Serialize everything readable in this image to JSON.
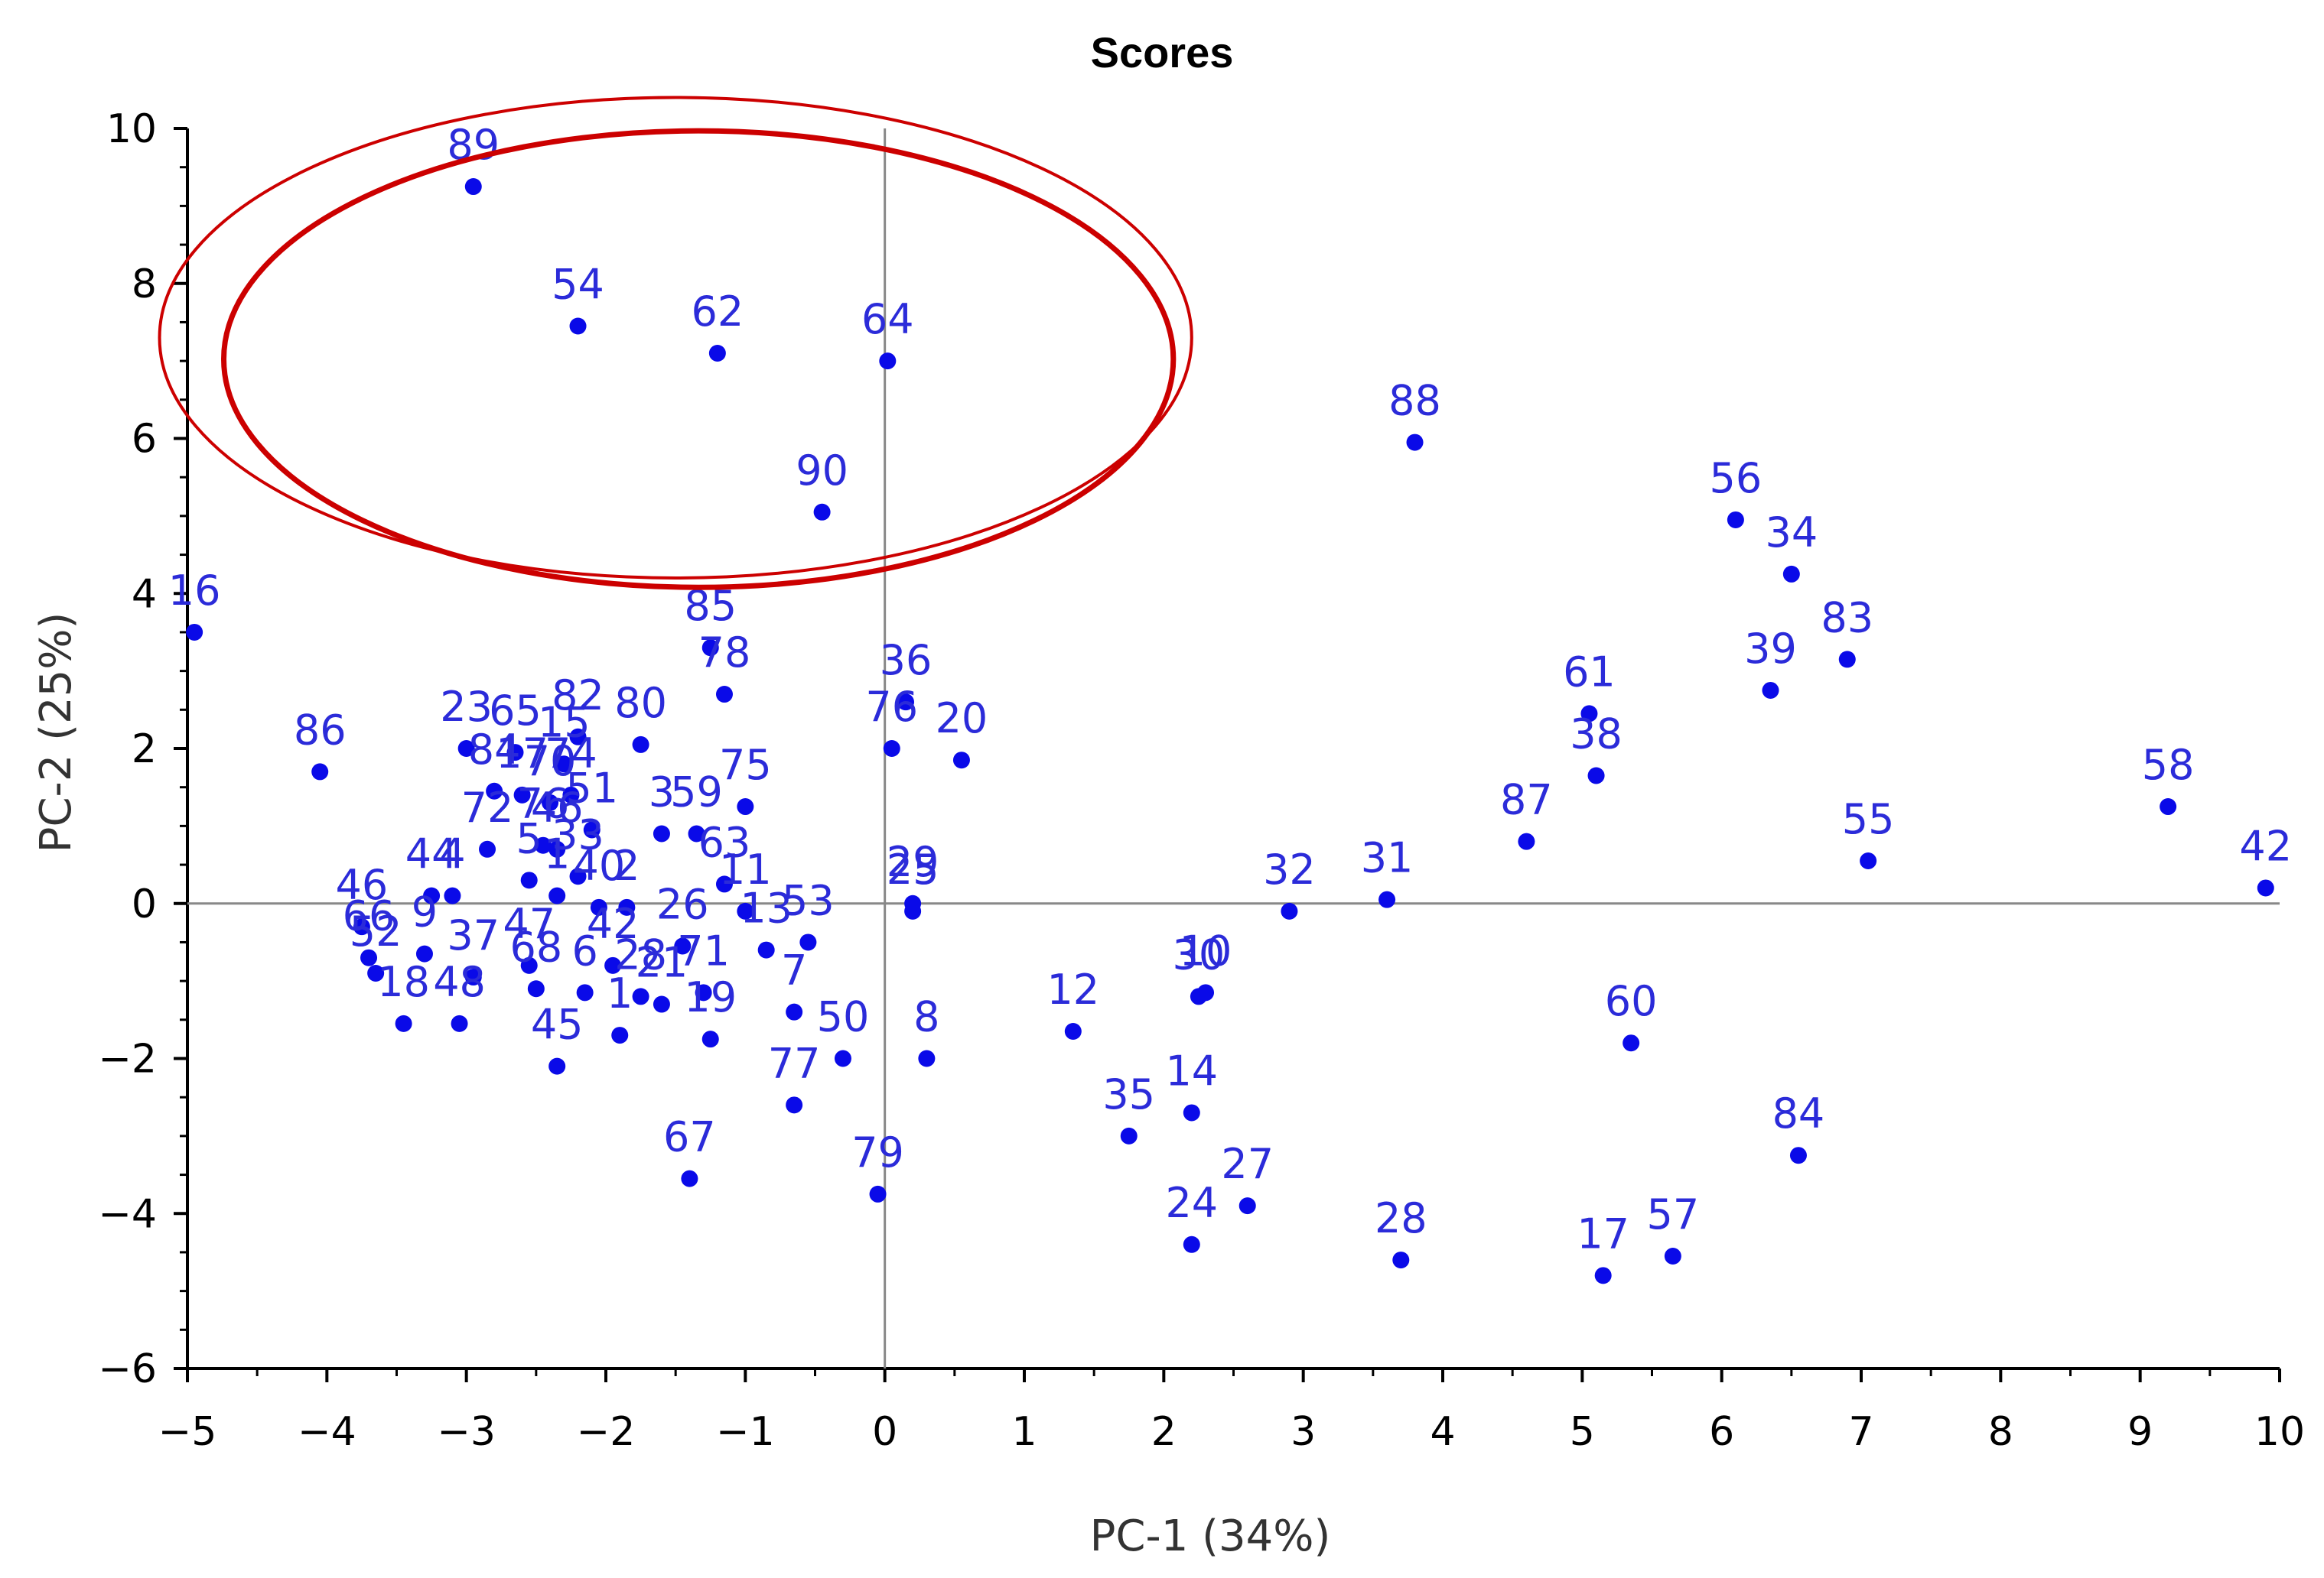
{
  "chart_data": {
    "type": "scatter",
    "title": "Scores",
    "xlabel": "PC-1 (34%)",
    "ylabel": "PC-2 (25%)",
    "xlim": [
      -5,
      10
    ],
    "ylim": [
      -6,
      10
    ],
    "xticks": [
      "−5",
      "−4",
      "−3",
      "−2",
      "−1",
      "0",
      "1",
      "2",
      "3",
      "4",
      "5",
      "6",
      "7",
      "8",
      "9",
      "10"
    ],
    "yticks": [
      "−6",
      "−4",
      "−2",
      "0",
      "2",
      "4",
      "6",
      "8",
      "10"
    ],
    "grid": false,
    "zero_lines": true,
    "point_color": "#0a0ae8",
    "label_color": "#2b2bd9",
    "highlight_color": "#cc0000",
    "highlight_ellipse": {
      "center": [
        -1.5,
        7.3
      ],
      "radius": [
        3.7,
        3.1
      ]
    },
    "points": [
      {
        "label": "89",
        "x": -2.95,
        "y": 9.25
      },
      {
        "label": "54",
        "x": -2.2,
        "y": 7.45
      },
      {
        "label": "62",
        "x": -1.2,
        "y": 7.1
      },
      {
        "label": "64",
        "x": 0.02,
        "y": 7.0
      },
      {
        "label": "90",
        "x": -0.45,
        "y": 5.05
      },
      {
        "label": "88",
        "x": 3.8,
        "y": 5.95
      },
      {
        "label": "56",
        "x": 6.1,
        "y": 4.95
      },
      {
        "label": "34",
        "x": 6.5,
        "y": 4.25
      },
      {
        "label": "83",
        "x": 6.9,
        "y": 3.15
      },
      {
        "label": "39",
        "x": 6.35,
        "y": 2.75
      },
      {
        "label": "61",
        "x": 5.05,
        "y": 2.45
      },
      {
        "label": "38",
        "x": 5.1,
        "y": 1.65
      },
      {
        "label": "87",
        "x": 4.6,
        "y": 0.8
      },
      {
        "label": "58",
        "x": 9.2,
        "y": 1.25
      },
      {
        "label": "42",
        "x": 9.9,
        "y": 0.2
      },
      {
        "label": "55",
        "x": 7.05,
        "y": 0.55
      },
      {
        "label": "32",
        "x": 2.9,
        "y": -0.1
      },
      {
        "label": "31",
        "x": 3.6,
        "y": 0.05
      },
      {
        "label": "16",
        "x": -4.95,
        "y": 3.5
      },
      {
        "label": "86",
        "x": -4.05,
        "y": 1.7
      },
      {
        "label": "85",
        "x": -1.25,
        "y": 3.3
      },
      {
        "label": "78",
        "x": -1.15,
        "y": 2.7
      },
      {
        "label": "36",
        "x": 0.15,
        "y": 2.6
      },
      {
        "label": "76",
        "x": 0.05,
        "y": 2.0
      },
      {
        "label": "20",
        "x": 0.55,
        "y": 1.85
      },
      {
        "label": "23",
        "x": -3.0,
        "y": 2.0
      },
      {
        "label": "65",
        "x": -2.65,
        "y": 1.95
      },
      {
        "label": "82",
        "x": -2.2,
        "y": 2.15
      },
      {
        "label": "80",
        "x": -1.75,
        "y": 2.05
      },
      {
        "label": "15",
        "x": -2.3,
        "y": 1.8
      },
      {
        "label": "75",
        "x": -1.0,
        "y": 1.25
      },
      {
        "label": "84",
        "x": -2.8,
        "y": 1.45
      },
      {
        "label": "17",
        "x": -2.6,
        "y": 1.4
      },
      {
        "label": "70",
        "x": -2.4,
        "y": 1.3
      },
      {
        "label": "74",
        "x": -2.25,
        "y": 1.4
      },
      {
        "label": "51",
        "x": -2.1,
        "y": 0.95
      },
      {
        "label": "3",
        "x": -1.6,
        "y": 0.9
      },
      {
        "label": "59",
        "x": -1.35,
        "y": 0.9
      },
      {
        "label": "63",
        "x": -1.15,
        "y": 0.25
      },
      {
        "label": "72",
        "x": -2.85,
        "y": 0.7
      },
      {
        "label": "76",
        "x": -2.45,
        "y": 0.75
      },
      {
        "label": "46",
        "x": -2.35,
        "y": 0.7
      },
      {
        "label": "33",
        "x": -2.2,
        "y": 0.35
      },
      {
        "label": "29",
        "x": 0.2,
        "y": 0.0
      },
      {
        "label": "25",
        "x": 0.2,
        "y": -0.1
      },
      {
        "label": "46",
        "x": -3.75,
        "y": -0.3
      },
      {
        "label": "66",
        "x": -3.7,
        "y": -0.7
      },
      {
        "label": "44",
        "x": -3.25,
        "y": 0.1
      },
      {
        "label": "4",
        "x": -3.1,
        "y": 0.1
      },
      {
        "label": "5",
        "x": -2.55,
        "y": 0.3
      },
      {
        "label": "1",
        "x": -2.35,
        "y": 0.1
      },
      {
        "label": "40",
        "x": -2.05,
        "y": -0.05
      },
      {
        "label": "2",
        "x": -1.85,
        "y": -0.05
      },
      {
        "label": "52",
        "x": -3.65,
        "y": -0.9
      },
      {
        "label": "9",
        "x": -3.3,
        "y": -0.65
      },
      {
        "label": "37",
        "x": -2.95,
        "y": -0.95
      },
      {
        "label": "47",
        "x": -2.55,
        "y": -0.8
      },
      {
        "label": "42",
        "x": -1.95,
        "y": -0.8
      },
      {
        "label": "26",
        "x": -1.45,
        "y": -0.55
      },
      {
        "label": "11",
        "x": -1.0,
        "y": -0.1
      },
      {
        "label": "13",
        "x": -0.85,
        "y": -0.6
      },
      {
        "label": "53",
        "x": -0.55,
        "y": -0.5
      },
      {
        "label": "71",
        "x": -1.3,
        "y": -1.15
      },
      {
        "label": "6",
        "x": -2.15,
        "y": -1.15
      },
      {
        "label": "68",
        "x": -2.5,
        "y": -1.1
      },
      {
        "label": "28",
        "x": -1.75,
        "y": -1.2
      },
      {
        "label": "21",
        "x": -1.6,
        "y": -1.3
      },
      {
        "label": "19",
        "x": -1.25,
        "y": -1.75
      },
      {
        "label": "48",
        "x": -3.05,
        "y": -1.55
      },
      {
        "label": "45",
        "x": -2.35,
        "y": -2.1
      },
      {
        "label": "8",
        "x": 0.3,
        "y": -2.0
      },
      {
        "label": "50",
        "x": -0.3,
        "y": -2.0
      },
      {
        "label": "7",
        "x": -0.65,
        "y": -1.4
      },
      {
        "label": "77",
        "x": -0.65,
        "y": -2.6
      },
      {
        "label": "18",
        "x": -3.45,
        "y": -1.55
      },
      {
        "label": "1",
        "x": -1.9,
        "y": -1.7
      },
      {
        "label": "67",
        "x": -1.4,
        "y": -3.55
      },
      {
        "label": "79",
        "x": -0.05,
        "y": -3.75
      },
      {
        "label": "12",
        "x": 1.35,
        "y": -1.65
      },
      {
        "label": "30",
        "x": 2.25,
        "y": -1.2
      },
      {
        "label": "10",
        "x": 2.3,
        "y": -1.15
      },
      {
        "label": "14",
        "x": 2.2,
        "y": -2.7
      },
      {
        "label": "35",
        "x": 1.75,
        "y": -3.0
      },
      {
        "label": "27",
        "x": 2.6,
        "y": -3.9
      },
      {
        "label": "24",
        "x": 2.2,
        "y": -4.4
      },
      {
        "label": "28",
        "x": 3.7,
        "y": -4.6
      },
      {
        "label": "17",
        "x": 5.15,
        "y": -4.8
      },
      {
        "label": "57",
        "x": 5.65,
        "y": -4.55
      },
      {
        "label": "60",
        "x": 5.35,
        "y": -1.8
      },
      {
        "label": "84",
        "x": 6.55,
        "y": -3.25
      }
    ]
  }
}
